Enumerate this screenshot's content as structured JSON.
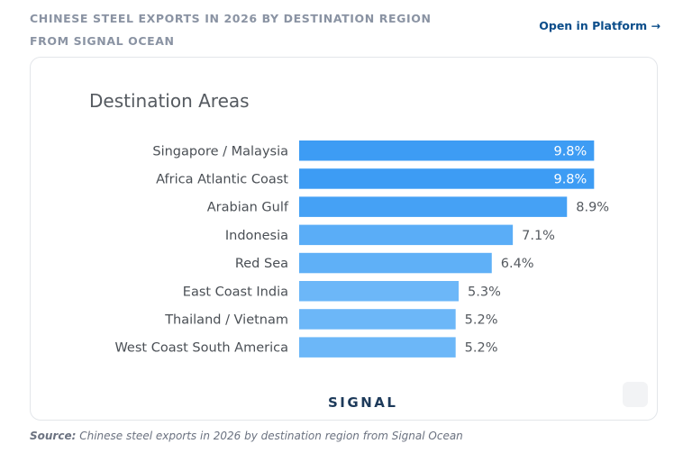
{
  "header": {
    "title_line1": "CHINESE STEEL EXPORTS IN 2026 BY DESTINATION REGION",
    "title_line2": "FROM SIGNAL OCEAN",
    "open_link": "Open in Platform →"
  },
  "chart_data": {
    "type": "bar",
    "orientation": "horizontal",
    "title": "Destination Areas",
    "categories": [
      "Singapore / Malaysia",
      "Africa Atlantic Coast",
      "Arabian Gulf",
      "Indonesia",
      "Red Sea",
      "East Coast India",
      "Thailand / Vietnam",
      "West Coast South America"
    ],
    "values": [
      9.8,
      9.8,
      8.9,
      7.1,
      6.4,
      5.3,
      5.2,
      5.2
    ],
    "value_labels": [
      "9.8%",
      "9.8%",
      "8.9%",
      "7.1%",
      "6.4%",
      "5.3%",
      "5.2%",
      "5.2%"
    ],
    "unit": "%",
    "xlim": [
      0,
      10
    ],
    "colors": [
      "#3d9cf4",
      "#3d9cf4",
      "#45a1f5",
      "#5aadf7",
      "#5fb0f7",
      "#6cb7f8",
      "#6cb7f8",
      "#6cb7f8"
    ],
    "label_inside_color": "#ffffff",
    "label_outside_color": "#555a60"
  },
  "logo": {
    "text": "SIGNAL"
  },
  "source": {
    "label": "Source:",
    "text": " Chinese steel exports in 2026 by destination region from Signal Ocean"
  }
}
